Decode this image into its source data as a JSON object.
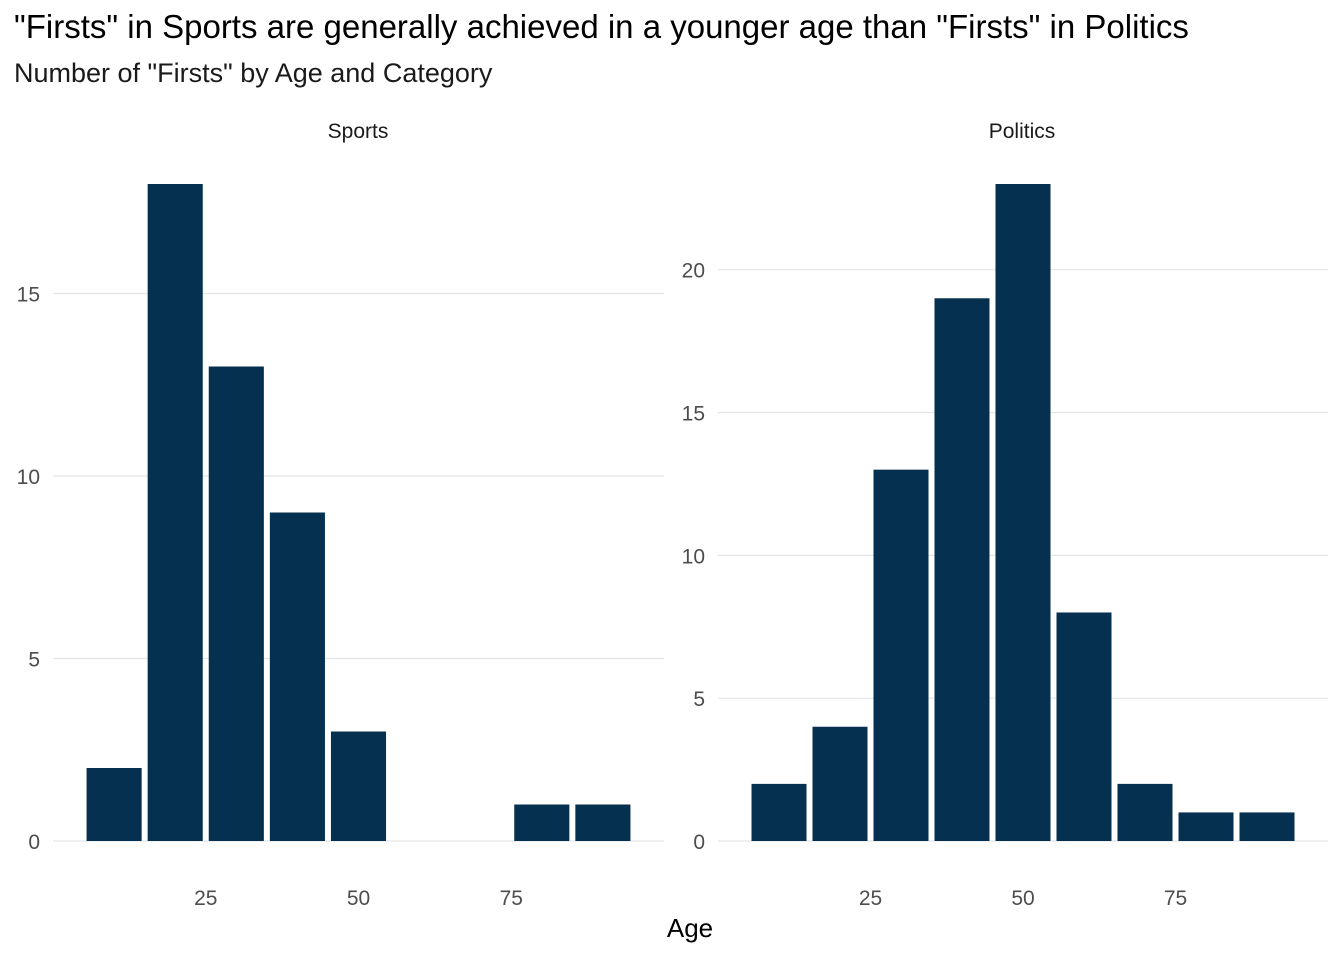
{
  "chart_data": {
    "type": "bar",
    "title": "\"Firsts\" in Sports are generally achieved in a younger age than \"Firsts\" in Politics",
    "subtitle": "Number of \"Firsts\" by Age and Category",
    "xlabel": "Age",
    "ylabel": "",
    "grid": true,
    "bar_color": "#05304f",
    "bin_width": 10,
    "facets": [
      {
        "name": "Sports",
        "xlim": [
          0,
          100
        ],
        "x_ticks": [
          25,
          50,
          75
        ],
        "ylim": [
          0,
          18
        ],
        "y_ticks": [
          0,
          5,
          10,
          15
        ],
        "bins": [
          10,
          20,
          30,
          40,
          50,
          60,
          70,
          80,
          90
        ],
        "values": [
          2,
          18,
          13,
          9,
          3,
          0,
          0,
          1,
          1
        ]
      },
      {
        "name": "Politics",
        "xlim": [
          0,
          100
        ],
        "x_ticks": [
          25,
          50,
          75
        ],
        "ylim": [
          0,
          23
        ],
        "y_ticks": [
          0,
          5,
          10,
          15,
          20
        ],
        "bins": [
          10,
          20,
          30,
          40,
          50,
          60,
          70,
          80,
          90
        ],
        "values": [
          2,
          4,
          13,
          19,
          23,
          8,
          2,
          1,
          1
        ]
      }
    ]
  }
}
